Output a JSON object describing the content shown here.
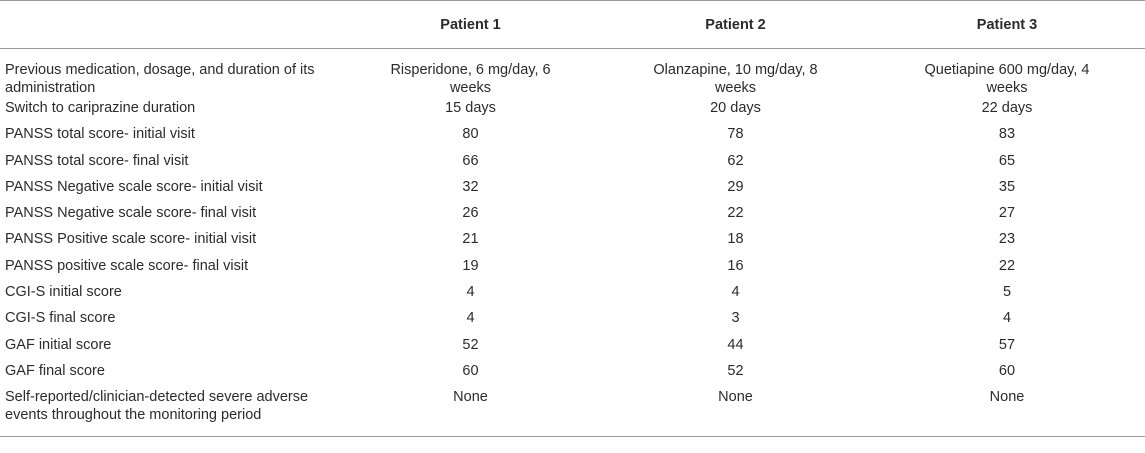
{
  "table": {
    "headers": [
      "",
      "Patient 1",
      "Patient 2",
      "Patient 3"
    ],
    "rows": [
      {
        "label": "Previous medication, dosage, and duration of its administration",
        "values": [
          "Risperidone, 6 mg/day, 6 weeks",
          "Olanzapine, 10 mg/day, 8 weeks",
          "Quetiapine 600 mg/day, 4 weeks"
        ]
      },
      {
        "label": "Switch to cariprazine duration",
        "values": [
          "15 days",
          "20 days",
          "22 days"
        ]
      },
      {
        "label": "PANSS total score- initial visit",
        "values": [
          "80",
          "78",
          "83"
        ]
      },
      {
        "label": "PANSS total score- final visit",
        "values": [
          "66",
          "62",
          "65"
        ]
      },
      {
        "label": "PANSS Negative scale score- initial visit",
        "values": [
          "32",
          "29",
          "35"
        ]
      },
      {
        "label": "PANSS Negative scale score- final visit",
        "values": [
          "26",
          "22",
          "27"
        ]
      },
      {
        "label": "PANSS Positive scale score- initial visit",
        "values": [
          "21",
          "18",
          "23"
        ]
      },
      {
        "label": "PANSS positive scale score- final visit",
        "values": [
          "19",
          "16",
          "22"
        ]
      },
      {
        "label": "CGI-S initial score",
        "values": [
          "4",
          "4",
          "5"
        ]
      },
      {
        "label": "CGI-S final score",
        "values": [
          "4",
          "3",
          "4"
        ]
      },
      {
        "label": "GAF initial score",
        "values": [
          "52",
          "44",
          "57"
        ]
      },
      {
        "label": "GAF final score",
        "values": [
          "60",
          "52",
          "60"
        ]
      },
      {
        "label": "Self-reported/clinician-detected severe adverse events throughout the monitoring period",
        "values": [
          "None",
          "None",
          "None"
        ]
      }
    ]
  }
}
